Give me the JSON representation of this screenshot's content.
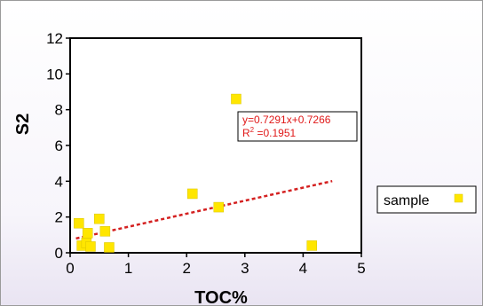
{
  "chart_data": {
    "type": "scatter",
    "title": "",
    "xlabel": "TOC%",
    "ylabel": "S2",
    "xlim": [
      0,
      5
    ],
    "ylim": [
      0,
      12
    ],
    "x_ticks": [
      "0",
      "1",
      "2",
      "3",
      "4",
      "5"
    ],
    "y_ticks": [
      "0",
      "2",
      "4",
      "6",
      "8",
      "10",
      "12"
    ],
    "grid": false,
    "legend_position": "right",
    "series": [
      {
        "name": "sample",
        "color": "#ffe600",
        "marker": "square",
        "points": [
          {
            "x": 0.15,
            "y": 1.65
          },
          {
            "x": 0.2,
            "y": 0.4
          },
          {
            "x": 0.28,
            "y": 0.55
          },
          {
            "x": 0.3,
            "y": 1.1
          },
          {
            "x": 0.35,
            "y": 0.35
          },
          {
            "x": 0.5,
            "y": 1.9
          },
          {
            "x": 0.6,
            "y": 1.2
          },
          {
            "x": 0.67,
            "y": 0.3
          },
          {
            "x": 2.1,
            "y": 3.3
          },
          {
            "x": 2.55,
            "y": 2.55
          },
          {
            "x": 2.85,
            "y": 8.6
          },
          {
            "x": 4.15,
            "y": 0.4
          }
        ]
      }
    ],
    "trendline": {
      "style": "dashed",
      "color": "#d42020",
      "slope": 0.7291,
      "intercept": 0.7266,
      "x_range": [
        0.1,
        4.5
      ],
      "equation": "y=0.7291x+0.7266",
      "r2_label": "R",
      "r2_sup": "2",
      "r2_value": " =0.1951"
    }
  }
}
